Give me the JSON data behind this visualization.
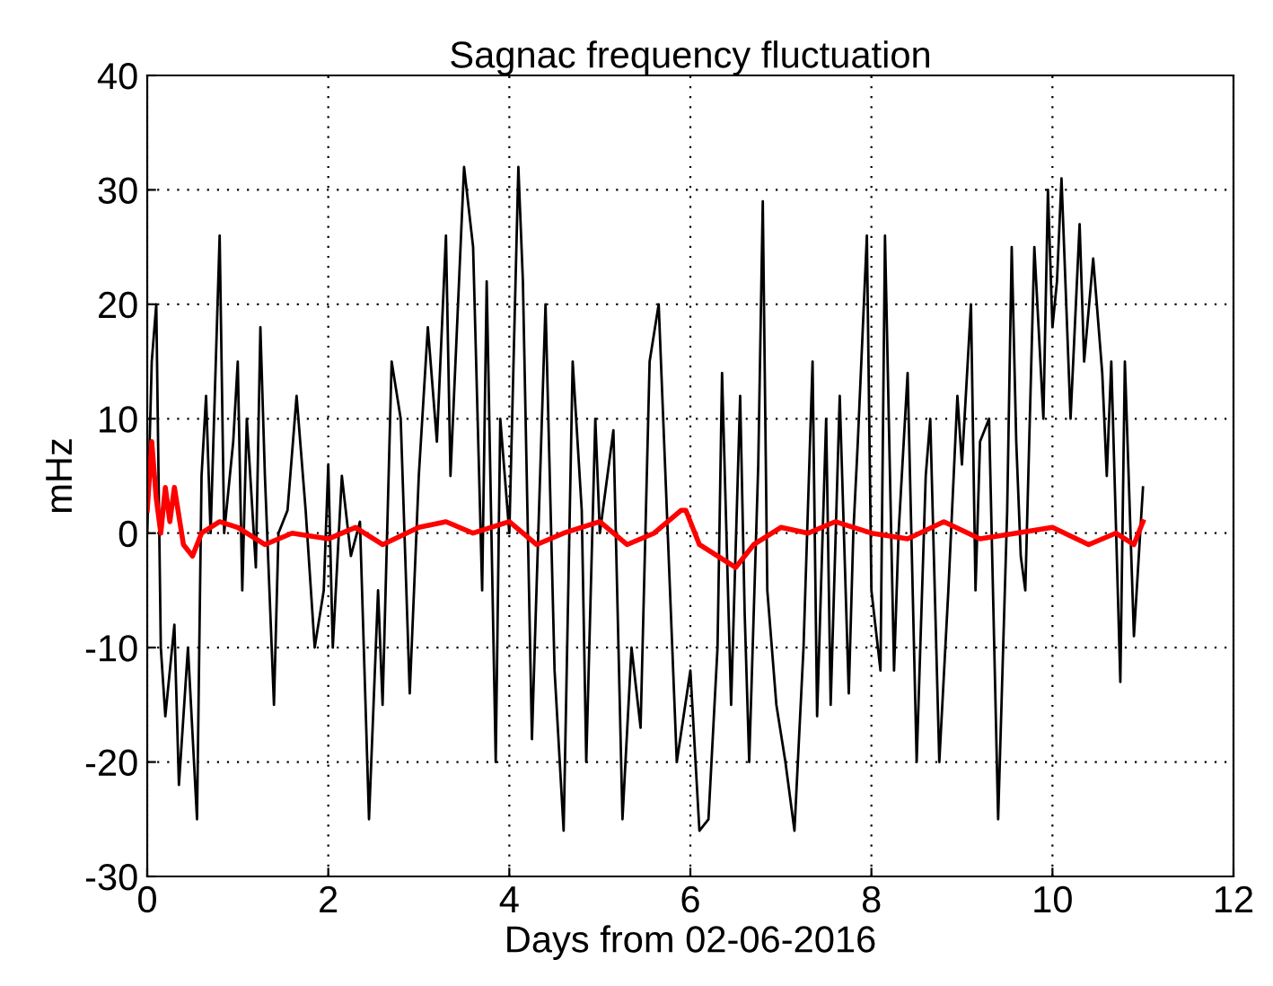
{
  "chart_data": {
    "type": "line",
    "title": "Sagnac frequency fluctuation",
    "xlabel": "Days from 02-06-2016",
    "ylabel": "mHz",
    "xlim": [
      0,
      12
    ],
    "ylim": [
      -30,
      40
    ],
    "xticks": [
      0,
      2,
      4,
      6,
      8,
      10,
      12
    ],
    "yticks": [
      -30,
      -20,
      -10,
      0,
      10,
      20,
      30,
      40
    ],
    "grid": true,
    "legend": false,
    "line_style": "solid",
    "marker": "none",
    "series": [
      {
        "color": "#000000",
        "x": [
          0,
          0.05,
          0.1,
          0.15,
          0.2,
          0.3,
          0.35,
          0.45,
          0.55,
          0.6,
          0.65,
          0.7,
          0.8,
          0.85,
          0.95,
          1.0,
          1.05,
          1.1,
          1.2,
          1.25,
          1.3,
          1.4,
          1.45,
          1.55,
          1.65,
          1.75,
          1.85,
          1.95,
          2.0,
          2.05,
          2.15,
          2.25,
          2.35,
          2.45,
          2.55,
          2.6,
          2.7,
          2.8,
          2.9,
          3.0,
          3.1,
          3.2,
          3.3,
          3.35,
          3.5,
          3.6,
          3.7,
          3.75,
          3.85,
          3.9,
          4.0,
          4.1,
          4.15,
          4.25,
          4.3,
          4.4,
          4.5,
          4.6,
          4.7,
          4.8,
          4.85,
          4.95,
          5.0,
          5.15,
          5.25,
          5.35,
          5.45,
          5.55,
          5.65,
          5.7,
          5.8,
          5.85,
          6.0,
          6.1,
          6.2,
          6.3,
          6.35,
          6.45,
          6.55,
          6.6,
          6.65,
          6.75,
          6.8,
          6.85,
          6.95,
          7.05,
          7.15,
          7.25,
          7.35,
          7.4,
          7.5,
          7.55,
          7.65,
          7.75,
          7.8,
          7.85,
          7.95,
          8.0,
          8.1,
          8.15,
          8.25,
          8.3,
          8.4,
          8.5,
          8.6,
          8.65,
          8.75,
          8.85,
          8.95,
          9.0,
          9.1,
          9.15,
          9.2,
          9.3,
          9.4,
          9.5,
          9.55,
          9.6,
          9.65,
          9.7,
          9.8,
          9.9,
          9.95,
          10.0,
          10.05,
          10.1,
          10.2,
          10.3,
          10.35,
          10.45,
          10.55,
          10.6,
          10.65,
          10.75,
          10.8,
          10.9,
          11.0
        ],
        "values": [
          0,
          15,
          20,
          -10,
          -16,
          -8,
          -22,
          -10,
          -25,
          5,
          12,
          0,
          26,
          0,
          8,
          15,
          -5,
          10,
          -3,
          18,
          5,
          -15,
          0,
          2,
          12,
          2,
          -10,
          -5,
          6,
          -10,
          5,
          -2,
          1,
          -25,
          -5,
          -15,
          15,
          10,
          -14,
          5,
          18,
          8,
          26,
          5,
          32,
          25,
          -5,
          22,
          -20,
          10,
          0,
          32,
          22,
          -18,
          -5,
          20,
          -12,
          -26,
          15,
          2,
          -20,
          10,
          0,
          9,
          -25,
          -10,
          -17,
          15,
          20,
          10,
          -10,
          -20,
          -12,
          -26,
          -25,
          -10,
          14,
          -15,
          12,
          -7,
          -20,
          6,
          29,
          -5,
          -15,
          -20,
          -26,
          -10,
          15,
          -16,
          10,
          -15,
          12,
          -14,
          0,
          8,
          26,
          -5,
          -12,
          26,
          -12,
          0,
          14,
          -20,
          5,
          10,
          -20,
          -5,
          12,
          6,
          20,
          -5,
          8,
          10,
          -25,
          2,
          25,
          8,
          -2,
          -5,
          25,
          10,
          30,
          18,
          22,
          31,
          10,
          27,
          15,
          24,
          14,
          5,
          15,
          -13,
          15,
          -9,
          4
        ]
      },
      {
        "color": "#ff0000",
        "x": [
          0,
          0.05,
          0.1,
          0.15,
          0.2,
          0.25,
          0.3,
          0.4,
          0.5,
          0.6,
          0.8,
          1.0,
          1.3,
          1.6,
          2.0,
          2.3,
          2.6,
          3.0,
          3.3,
          3.6,
          4.0,
          4.3,
          4.6,
          5.0,
          5.3,
          5.6,
          5.9,
          5.95,
          6.1,
          6.3,
          6.5,
          6.7,
          7.0,
          7.3,
          7.6,
          8.0,
          8.4,
          8.8,
          9.2,
          9.6,
          10.0,
          10.4,
          10.7,
          10.9,
          11.0
        ],
        "values": [
          2,
          8,
          3,
          0,
          4,
          1,
          4,
          -1,
          -2,
          0,
          1,
          0.5,
          -1,
          0,
          -0.5,
          0.5,
          -1,
          0.5,
          1,
          0,
          1,
          -1,
          0,
          1,
          -1,
          0,
          2,
          2,
          -1,
          -2,
          -3,
          -1,
          0.5,
          0,
          1,
          0,
          -0.5,
          1,
          -0.5,
          0,
          0.5,
          -1,
          0,
          -1,
          1
        ]
      }
    ]
  }
}
